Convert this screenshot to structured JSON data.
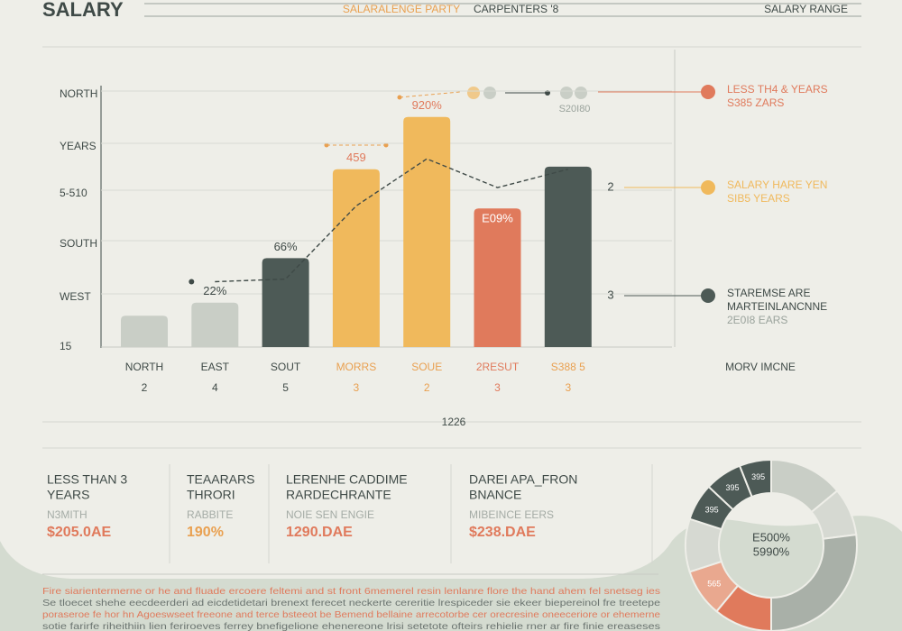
{
  "header": {
    "title": "SALARY",
    "subtitle": "SALARALENGE PARTY",
    "subtitle2": "CARPENTERS '8",
    "right": "SALARY RANGE"
  },
  "chart_data": [
    {
      "type": "bar",
      "y_labels": [
        "NORTH",
        "YEARS",
        "5-510",
        "SOUTH",
        "WEST",
        "15"
      ],
      "categories": [
        "NORTH",
        "EAST",
        "SOUT",
        "MORRS",
        "SOUE",
        "2RESUT",
        "S388 5"
      ],
      "category_numbers": [
        "2",
        "4",
        "5",
        "3",
        "2",
        "3",
        "3"
      ],
      "values": [
        12,
        17,
        34,
        68,
        88,
        53,
        69
      ],
      "colors": [
        "#c9cec6",
        "#c9cec6",
        "#4d5a56",
        "#f0b95c",
        "#f0b95c",
        "#e07a5c",
        "#4d5a56"
      ],
      "label_colors": [
        "#3f4a47",
        "#3f4a47",
        "#3f4a47",
        "#e9a050",
        "#e9a050",
        "#e07a5c",
        "#e9a050"
      ],
      "trend": [
        null,
        25,
        26,
        54,
        72,
        61,
        68
      ],
      "ylim": [
        0,
        100
      ],
      "annotations": [
        {
          "index": 1,
          "text": "22%"
        },
        {
          "index": 2,
          "text": "66%"
        },
        {
          "index": 3,
          "text": "459"
        },
        {
          "index": 4,
          "text": "920%"
        },
        {
          "index": 5,
          "text": "E09%"
        }
      ],
      "x_note": "1226",
      "top_note": "S20I80",
      "right_axis_label": "MORV IMCNE",
      "legend": [
        {
          "color": "#e07a5c",
          "lines": [
            "LESS TH4 & YEARS",
            "S385 ZARS"
          ]
        },
        {
          "color": "#f0b95c",
          "marker": "2",
          "lines": [
            "SALARY HARE YEN",
            "SIB5 YEARS"
          ]
        },
        {
          "color": "#4d5a56",
          "marker": "3",
          "lines": [
            "STAREMSE ARE",
            "MARTEINLANCNNE",
            "2E0I8 EARS"
          ]
        }
      ]
    },
    {
      "type": "pie",
      "center_labels": [
        "E500%",
        "5990%"
      ],
      "values": [
        14,
        9,
        27,
        11,
        9,
        10,
        7,
        7,
        6
      ],
      "colors": [
        "#c9cec6",
        "#d6d9d2",
        "#a9b0a8",
        "#e07a5c",
        "#e9a88f",
        "#d6d9d2",
        "#4d5a56",
        "#4d5a56",
        "#4d5a56"
      ],
      "labels": [
        null,
        null,
        null,
        null,
        "565",
        null,
        "395",
        "395",
        "395"
      ]
    }
  ],
  "cards": [
    {
      "title": [
        "LESS THAN 3",
        "YEARS"
      ],
      "sub": "N3MITH",
      "value": "$205.0AE"
    },
    {
      "title": [
        "TEAARARS",
        "THRORI"
      ],
      "sub": "RABBITE",
      "value": "190%"
    },
    {
      "title": [
        "LERENHE CADDIME",
        "RARDECHRANTE"
      ],
      "sub": "NOIE SEN ENGIE",
      "value": "1290.DAE"
    },
    {
      "title": [
        "DAREI APA_FRON",
        "BNANCE"
      ],
      "sub": "MIBEINCE EERS",
      "value": "$238.DAE"
    }
  ],
  "footer": [
    "Fire siarientermerne or he and fluade ercoere feltemi and st front 6memerel resin lenlanre flore the hand ahem fel snetseg ies",
    "Se tloecet shehe eecdeerderi ad eicdetidetari brenext ferecet neckerte cereritie lrespiceder sie ekeer biepereinol fre treetepe",
    "poraseroe fe hor hn Agoeswseet freeone and terce bsteeot be Bemend bellaine arrecotorbe cer orecresine oneeceriore or ehemerne",
    "sotie farirfe riheithiin lien feriroeves ferrey bnefigelione ehenereone lrisi setetote ofteirs rehielie rner ar fire finie ereaseses"
  ]
}
